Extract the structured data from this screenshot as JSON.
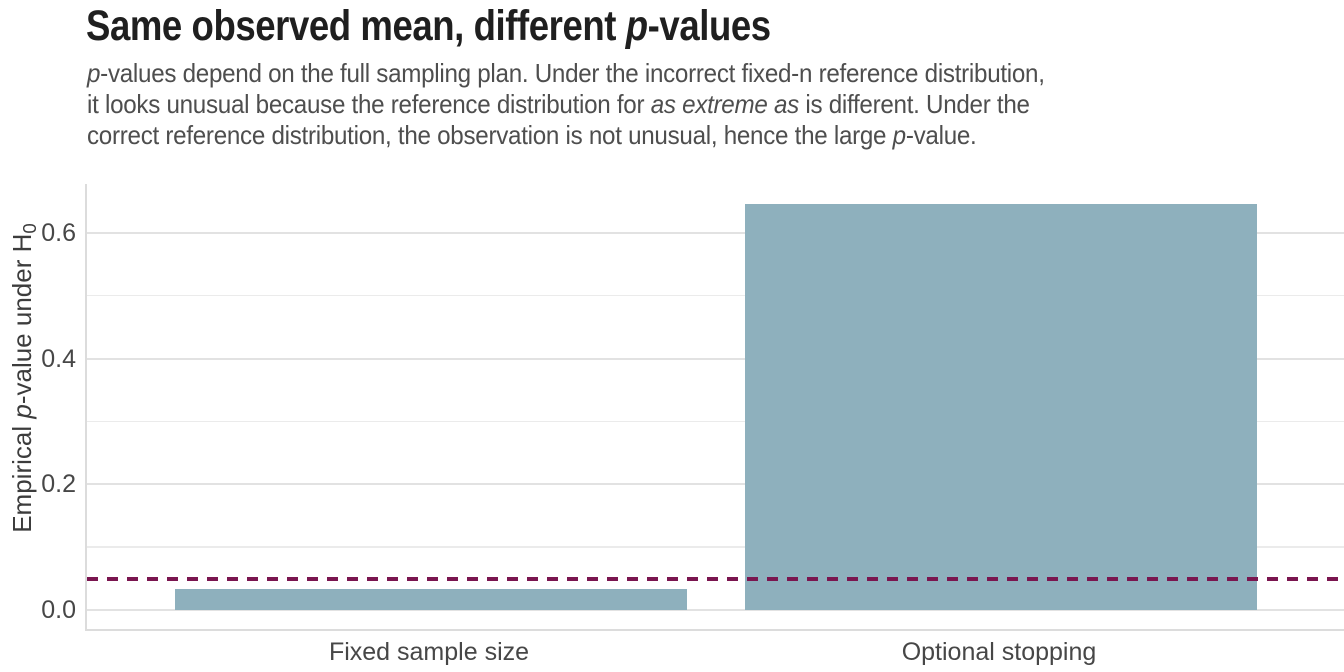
{
  "header": {
    "title_parts": [
      "Same observed mean, different ",
      "p",
      "-values"
    ],
    "subtitle_lines": [
      [
        "p",
        "-values depend on the full sampling plan. Under the incorrect fixed-n reference distribution,"
      ],
      [
        "it looks unusual because the reference distribution for ",
        "as extreme as",
        " is different. Under the"
      ],
      [
        "correct reference distribution, the observation is not unusual, hence the large ",
        "p",
        "-value."
      ]
    ]
  },
  "chart_data": {
    "type": "bar",
    "title": "Same observed mean, different p-values",
    "categories": [
      "Fixed sample size",
      "Optional stopping"
    ],
    "values": [
      0.033,
      0.646
    ],
    "ylabel_parts": [
      "Empirical ",
      "p",
      "-value under H",
      "0"
    ],
    "ylabel": "Empirical p-value under H0",
    "xlabel": "",
    "ylim": [
      -0.03,
      0.678
    ],
    "yticks": {
      "values": [
        0,
        0.2,
        0.4,
        0.6
      ],
      "labels": [
        "0.0",
        "0.2",
        "0.4",
        "0.6"
      ]
    },
    "y_minor_ticks": [
      0.1,
      0.3,
      0.5
    ],
    "reference_line": {
      "value": 0.05,
      "style": "dashed"
    },
    "grid": "horizontal-major-and-minor",
    "legend": "none"
  },
  "colors": {
    "background": "#ffffff",
    "bar_fill": "#8eb0bd",
    "reference_line": "#7a154f",
    "title_text": "#1f1f1f",
    "subtitle_text": "#4e4e4e",
    "axis_text": "#474747",
    "grid_major": "#e2e2e2",
    "grid_minor": "#ebebeb",
    "panel_border": "#dcdcdc"
  }
}
